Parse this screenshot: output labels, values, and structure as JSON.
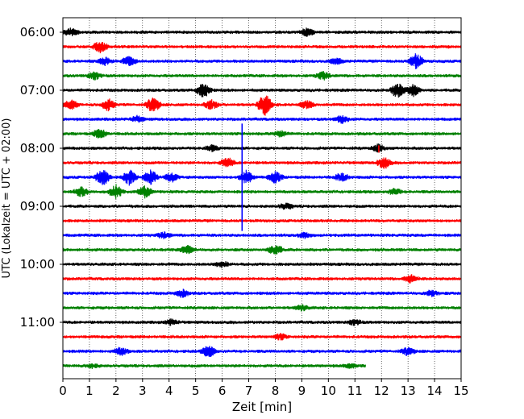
{
  "chart_data": {
    "type": "line",
    "xlabel": "Zeit  [min]",
    "ylabel": "UTC (Lokalzeit = UTC + 02:00)",
    "xlim": [
      0,
      15
    ],
    "x_ticks": [
      "0",
      "1",
      "2",
      "3",
      "4",
      "5",
      "6",
      "7",
      "8",
      "9",
      "10",
      "11",
      "12",
      "13",
      "14",
      "15"
    ],
    "y_ticks": [
      {
        "label": "06:00",
        "row": 0
      },
      {
        "label": "07:00",
        "row": 4
      },
      {
        "label": "08:00",
        "row": 8
      },
      {
        "label": "09:00",
        "row": 12
      },
      {
        "label": "10:00",
        "row": 16
      },
      {
        "label": "11:00",
        "row": 20
      }
    ],
    "grid": "vertical dotted",
    "row_minutes": 15,
    "row_colors": [
      "#000000",
      "#ff0000",
      "#0000ff",
      "#008000"
    ],
    "rows": [
      {
        "start": "06:00",
        "color": "#000000",
        "end_min": 15,
        "events": [
          {
            "t": 0.3,
            "amp": 0.4
          },
          {
            "t": 9.2,
            "amp": 0.4
          }
        ]
      },
      {
        "start": "06:15",
        "color": "#ff0000",
        "end_min": 15,
        "events": [
          {
            "t": 1.4,
            "amp": 0.6
          }
        ]
      },
      {
        "start": "06:30",
        "color": "#0000ff",
        "end_min": 15,
        "events": [
          {
            "t": 1.6,
            "amp": 0.4
          },
          {
            "t": 2.5,
            "amp": 0.5
          },
          {
            "t": 13.3,
            "amp": 0.8
          },
          {
            "t": 10.3,
            "amp": 0.3
          }
        ]
      },
      {
        "start": "06:45",
        "color": "#008000",
        "end_min": 15,
        "events": [
          {
            "t": 1.2,
            "amp": 0.4
          },
          {
            "t": 9.8,
            "amp": 0.4
          }
        ]
      },
      {
        "start": "07:00",
        "color": "#000000",
        "end_min": 15,
        "events": [
          {
            "t": 5.3,
            "amp": 0.8
          },
          {
            "t": 12.6,
            "amp": 0.8
          },
          {
            "t": 13.2,
            "amp": 0.6
          }
        ]
      },
      {
        "start": "07:15",
        "color": "#ff0000",
        "end_min": 15,
        "events": [
          {
            "t": 0.3,
            "amp": 0.5
          },
          {
            "t": 1.7,
            "amp": 0.6
          },
          {
            "t": 3.4,
            "amp": 0.8
          },
          {
            "t": 5.6,
            "amp": 0.5
          },
          {
            "t": 7.6,
            "amp": 1.2
          },
          {
            "t": 9.2,
            "amp": 0.4
          }
        ]
      },
      {
        "start": "07:30",
        "color": "#0000ff",
        "end_min": 15,
        "events": [
          {
            "t": 2.8,
            "amp": 0.3
          },
          {
            "t": 10.5,
            "amp": 0.4
          }
        ]
      },
      {
        "start": "07:45",
        "color": "#008000",
        "end_min": 15,
        "events": [
          {
            "t": 1.4,
            "amp": 0.5
          },
          {
            "t": 8.2,
            "amp": 0.3
          }
        ]
      },
      {
        "start": "08:00",
        "color": "#000000",
        "end_min": 15,
        "events": [
          {
            "t": 5.6,
            "amp": 0.3
          },
          {
            "t": 11.9,
            "amp": 0.4
          }
        ]
      },
      {
        "start": "08:15",
        "color": "#ff0000",
        "end_min": 15,
        "events": [
          {
            "t": 6.2,
            "amp": 0.5
          },
          {
            "t": 12.1,
            "amp": 0.6
          }
        ]
      },
      {
        "start": "08:30",
        "color": "#0000ff",
        "end_min": 15,
        "events": [
          {
            "t": 1.5,
            "amp": 0.9
          },
          {
            "t": 2.5,
            "amp": 0.8
          },
          {
            "t": 3.3,
            "amp": 0.8
          },
          {
            "t": 4.1,
            "amp": 0.5
          },
          {
            "t": 6.9,
            "amp": 0.7
          },
          {
            "t": 8.0,
            "amp": 0.6
          },
          {
            "t": 10.5,
            "amp": 0.4
          }
        ]
      },
      {
        "start": "08:45",
        "color": "#008000",
        "end_min": 15,
        "events": [
          {
            "t": 0.7,
            "amp": 0.5
          },
          {
            "t": 2.0,
            "amp": 0.7
          },
          {
            "t": 3.1,
            "amp": 0.6
          },
          {
            "t": 12.5,
            "amp": 0.3
          }
        ]
      },
      {
        "start": "09:00",
        "color": "#000000",
        "end_min": 15,
        "events": [
          {
            "t": 8.4,
            "amp": 0.3
          }
        ]
      },
      {
        "start": "09:15",
        "color": "#ff0000",
        "end_min": 15,
        "events": []
      },
      {
        "start": "09:30",
        "color": "#0000ff",
        "end_min": 15,
        "events": [
          {
            "t": 3.8,
            "amp": 0.3
          },
          {
            "t": 9.1,
            "amp": 0.3
          }
        ]
      },
      {
        "start": "09:45",
        "color": "#008000",
        "end_min": 15,
        "events": [
          {
            "t": 4.7,
            "amp": 0.4
          },
          {
            "t": 8.0,
            "amp": 0.6
          }
        ]
      },
      {
        "start": "10:00",
        "color": "#000000",
        "end_min": 15,
        "events": [
          {
            "t": 6.0,
            "amp": 0.3
          }
        ]
      },
      {
        "start": "10:15",
        "color": "#ff0000",
        "end_min": 15,
        "events": [
          {
            "t": 13.1,
            "amp": 0.4
          }
        ]
      },
      {
        "start": "10:30",
        "color": "#0000ff",
        "end_min": 15,
        "events": [
          {
            "t": 4.5,
            "amp": 0.4
          },
          {
            "t": 13.9,
            "amp": 0.3
          }
        ]
      },
      {
        "start": "10:45",
        "color": "#008000",
        "end_min": 15,
        "events": [
          {
            "t": 9.0,
            "amp": 0.3
          }
        ]
      },
      {
        "start": "11:00",
        "color": "#000000",
        "end_min": 15,
        "events": [
          {
            "t": 4.1,
            "amp": 0.3
          },
          {
            "t": 11.0,
            "amp": 0.3
          }
        ]
      },
      {
        "start": "11:15",
        "color": "#ff0000",
        "end_min": 15,
        "events": [
          {
            "t": 8.2,
            "amp": 0.3
          }
        ]
      },
      {
        "start": "11:30",
        "color": "#0000ff",
        "end_min": 15,
        "events": [
          {
            "t": 2.2,
            "amp": 0.4
          },
          {
            "t": 5.5,
            "amp": 0.6
          },
          {
            "t": 13.0,
            "amp": 0.4
          }
        ]
      },
      {
        "start": "11:45",
        "color": "#008000",
        "end_min": 11.4,
        "events": [
          {
            "t": 1.1,
            "amp": 0.2
          },
          {
            "t": 10.8,
            "amp": 0.2
          }
        ]
      }
    ],
    "spikes": [
      {
        "x": 6.75,
        "row_from": 6.3,
        "row_to": 13.7,
        "color": "#0000ff"
      },
      {
        "x": 7.6,
        "row_from": 4.6,
        "row_to": 5.6,
        "color": "#ff0000"
      },
      {
        "x": 11.9,
        "row_from": 7.8,
        "row_to": 8.3,
        "color": "#ff0000"
      }
    ]
  }
}
